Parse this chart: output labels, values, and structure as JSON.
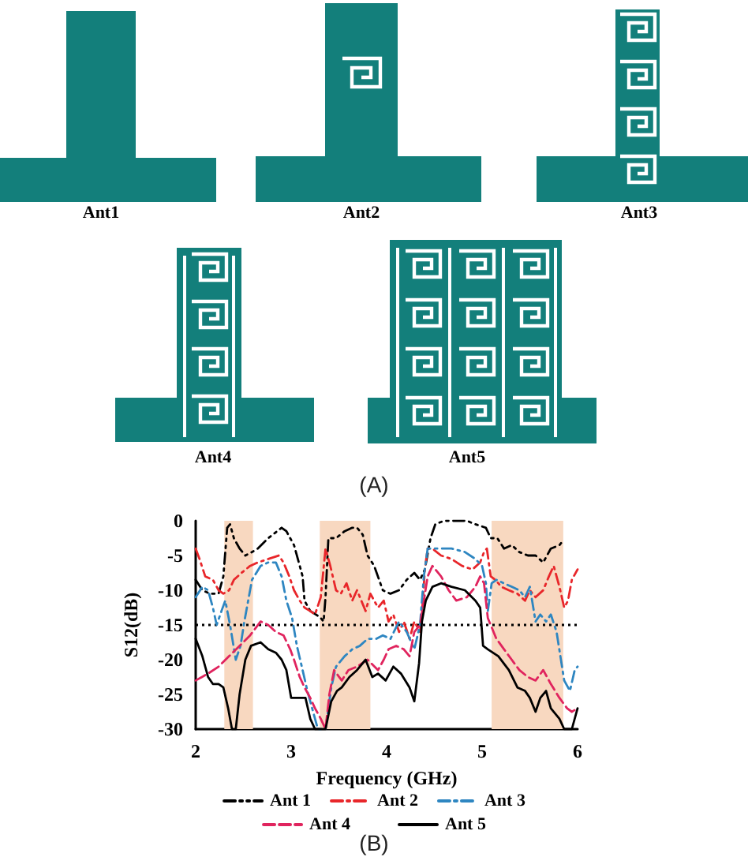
{
  "chart_data": [
    {
      "type": "other",
      "annotations": [
        "Ant1",
        "Ant2",
        "Ant3",
        "Ant4",
        "Ant5",
        "(A)"
      ]
    },
    {
      "type": "line",
      "xlabel": "Frequency (GHz)",
      "ylabel": "S12(dB)",
      "xlim": [
        2,
        6
      ],
      "ylim": [
        -30,
        0
      ],
      "xticks": [
        2,
        3,
        4,
        5,
        6
      ],
      "yticks": [
        -30,
        -25,
        -20,
        -15,
        -10,
        -5,
        0
      ],
      "grid": false,
      "legend": "bottom",
      "marker": "none",
      "annotations": [
        "(B)"
      ],
      "bands": [
        {
          "axis": "x",
          "from": 2.3,
          "to": 2.6,
          "color": "#f8d8c0"
        },
        {
          "axis": "x",
          "from": 3.3,
          "to": 3.83,
          "color": "#f8d8c0"
        },
        {
          "axis": "x",
          "from": 5.1,
          "to": 5.85,
          "color": "#f8d8c0"
        }
      ],
      "ref_lines": [
        {
          "axis": "y",
          "value": -15,
          "color": "#000000",
          "line_style": "dotted"
        }
      ],
      "series": [
        {
          "name": "Ant 1",
          "color": "#000000",
          "line_style": "dashdotdot",
          "x": [
            2.0,
            2.07,
            2.15,
            2.24,
            2.29,
            2.33,
            2.36,
            2.4,
            2.46,
            2.52,
            2.59,
            2.65,
            2.76,
            2.9,
            2.95,
            3.03,
            3.12,
            3.14,
            3.2,
            3.26,
            3.31,
            3.34,
            3.36,
            3.39,
            3.47,
            3.56,
            3.64,
            3.69,
            3.75,
            3.8,
            3.87,
            3.96,
            4.04,
            4.13,
            4.21,
            4.29,
            4.35,
            4.4,
            4.46,
            4.51,
            4.6,
            4.73,
            4.84,
            4.93,
            5.04,
            5.09,
            5.16,
            5.23,
            5.31,
            5.39,
            5.48,
            5.56,
            5.64,
            5.72,
            5.81,
            5.84
          ],
          "values": [
            -8.5,
            -10,
            -10.5,
            -10.5,
            -8,
            -1,
            -0.5,
            -2.5,
            -4,
            -5,
            -4.5,
            -4,
            -2.5,
            -1,
            -1.5,
            -3.5,
            -8,
            -11.5,
            -13,
            -13.5,
            -14,
            -14.5,
            -11,
            -2.5,
            -2.5,
            -1.5,
            -1,
            -1,
            -2,
            -5,
            -6.5,
            -10,
            -10.5,
            -10,
            -8.5,
            -7.5,
            -8.5,
            -7,
            -2.5,
            -0.5,
            0,
            0,
            0,
            -0.5,
            -1,
            -2.5,
            -2.5,
            -4,
            -3.5,
            -4.5,
            -5,
            -5,
            -6,
            -4,
            -3.5,
            -3
          ]
        },
        {
          "name": "Ant 2",
          "color": "#e8262a",
          "line_style": "dashdot",
          "x": [
            2.0,
            2.04,
            2.1,
            2.18,
            2.24,
            2.29,
            2.35,
            2.4,
            2.48,
            2.57,
            2.65,
            2.76,
            2.87,
            2.92,
            2.98,
            3.03,
            3.09,
            3.14,
            3.2,
            3.25,
            3.31,
            3.36,
            3.41,
            3.47,
            3.52,
            3.58,
            3.64,
            3.69,
            3.78,
            3.83,
            3.91,
            3.97,
            4.02,
            4.07,
            4.13,
            4.18,
            4.24,
            4.29,
            4.35,
            4.38,
            4.4,
            4.43,
            4.48,
            4.57,
            4.68,
            4.79,
            4.9,
            4.98,
            5.02,
            5.05,
            5.09,
            5.14,
            5.2,
            5.28,
            5.37,
            5.45,
            5.5,
            5.56,
            5.64,
            5.7,
            5.75,
            5.81,
            5.86,
            5.9,
            5.94,
            6.0
          ],
          "values": [
            -4,
            -5.5,
            -8,
            -8.5,
            -10,
            -10.5,
            -10,
            -8.5,
            -7.5,
            -6.5,
            -6,
            -5.5,
            -5,
            -6,
            -8,
            -10,
            -11.5,
            -12.5,
            -13,
            -13.5,
            -11,
            -4,
            -6.5,
            -10,
            -10.5,
            -9,
            -11.5,
            -10,
            -13,
            -10.5,
            -12.5,
            -11.5,
            -14.5,
            -13.5,
            -16,
            -14.5,
            -17,
            -14.5,
            -16,
            -11.5,
            -7,
            -4,
            -4,
            -5,
            -5.5,
            -6.5,
            -7,
            -6,
            -4.5,
            -4,
            -8,
            -8.5,
            -9.5,
            -10,
            -10.5,
            -11.5,
            -10,
            -11,
            -10,
            -8,
            -6.5,
            -9.5,
            -12.5,
            -11.5,
            -8.5,
            -7
          ]
        },
        {
          "name": "Ant 3",
          "color": "#2e86c1",
          "line_style": "dashdot",
          "x": [
            2.0,
            2.07,
            2.13,
            2.18,
            2.22,
            2.27,
            2.31,
            2.36,
            2.42,
            2.47,
            2.51,
            2.59,
            2.68,
            2.76,
            2.84,
            2.9,
            2.95,
            3.01,
            3.06,
            3.12,
            3.17,
            3.23,
            3.28,
            3.36,
            3.42,
            3.47,
            3.56,
            3.64,
            3.72,
            3.8,
            3.89,
            3.96,
            4.04,
            4.13,
            4.21,
            4.29,
            4.35,
            4.39,
            4.43,
            4.48,
            4.57,
            4.68,
            4.82,
            4.93,
            5.0,
            5.04,
            5.06,
            5.1,
            5.15,
            5.23,
            5.31,
            5.39,
            5.45,
            5.5,
            5.56,
            5.61,
            5.67,
            5.72,
            5.78,
            5.82,
            5.86,
            5.92,
            5.97,
            6.0
          ],
          "values": [
            -11,
            -9.5,
            -10,
            -12.5,
            -15,
            -13,
            -11.5,
            -15,
            -20,
            -18,
            -14.5,
            -8.5,
            -6.5,
            -6,
            -6,
            -8,
            -11.5,
            -14,
            -18,
            -21.5,
            -24.5,
            -27.5,
            -30,
            -30,
            -24,
            -21,
            -19.5,
            -18.5,
            -18,
            -17,
            -17,
            -16.5,
            -17,
            -14.5,
            -16,
            -18.5,
            -15,
            -8,
            -4,
            -4,
            -4,
            -4,
            -4.5,
            -5.5,
            -6.5,
            -9,
            -13,
            -9,
            -8.5,
            -9,
            -9.5,
            -10,
            -11,
            -9.5,
            -14.5,
            -13.5,
            -14.5,
            -13.5,
            -16,
            -19.5,
            -23,
            -24.5,
            -21.5,
            -21
          ]
        },
        {
          "name": "Ant 4",
          "color": "#e0245e",
          "line_style": "dashed",
          "x": [
            2.0,
            2.13,
            2.24,
            2.35,
            2.46,
            2.57,
            2.68,
            2.76,
            2.84,
            2.92,
            2.99,
            3.03,
            3.09,
            3.14,
            3.2,
            3.25,
            3.31,
            3.36,
            3.4,
            3.45,
            3.53,
            3.6,
            3.69,
            3.8,
            3.91,
            3.97,
            4.02,
            4.1,
            4.18,
            4.24,
            4.29,
            4.35,
            4.39,
            4.43,
            4.48,
            4.57,
            4.65,
            4.73,
            4.84,
            4.93,
            4.98,
            5.02,
            5.06,
            5.15,
            5.23,
            5.31,
            5.39,
            5.48,
            5.56,
            5.64,
            5.72,
            5.81,
            5.89,
            5.94,
            6.0
          ],
          "values": [
            -23,
            -22,
            -21,
            -19.5,
            -18,
            -16.5,
            -14.5,
            -15,
            -16,
            -16.5,
            -18.5,
            -20,
            -22.5,
            -24,
            -25.5,
            -27,
            -28.5,
            -30,
            -25,
            -21.5,
            -23,
            -21.5,
            -21,
            -20,
            -21.5,
            -20,
            -18.5,
            -18,
            -18.5,
            -19.5,
            -16,
            -15,
            -11.5,
            -8,
            -6.5,
            -8,
            -10,
            -11.5,
            -11,
            -9.5,
            -8,
            -9,
            -14,
            -17,
            -18.5,
            -20,
            -21.5,
            -22.5,
            -23,
            -21.5,
            -23.5,
            -25.5,
            -27,
            -27.5,
            -27
          ]
        },
        {
          "name": "Ant 5",
          "color": "#000000",
          "line_style": "solid",
          "x": [
            2.0,
            2.07,
            2.13,
            2.18,
            2.24,
            2.29,
            2.34,
            2.38,
            2.42,
            2.46,
            2.52,
            2.58,
            2.68,
            2.76,
            2.84,
            2.9,
            2.95,
            3.0,
            3.08,
            3.15,
            3.2,
            3.25,
            3.36,
            3.42,
            3.48,
            3.53,
            3.61,
            3.69,
            3.78,
            3.85,
            3.91,
            3.99,
            4.07,
            4.15,
            4.24,
            4.29,
            4.34,
            4.37,
            4.41,
            4.48,
            4.57,
            4.68,
            4.82,
            4.93,
            4.98,
            5.01,
            5.06,
            5.17,
            5.28,
            5.37,
            5.45,
            5.5,
            5.56,
            5.61,
            5.67,
            5.72,
            5.81,
            5.86,
            5.94,
            6.0
          ],
          "values": [
            -17,
            -19.5,
            -22.5,
            -23.5,
            -23.5,
            -24,
            -27,
            -30,
            -30,
            -25,
            -20,
            -18,
            -17.5,
            -18.5,
            -19,
            -20,
            -21.5,
            -25.5,
            -25.5,
            -25.5,
            -28.5,
            -30,
            -30,
            -26,
            -24.5,
            -24,
            -22.5,
            -21.5,
            -20,
            -22.5,
            -22,
            -23,
            -21,
            -22,
            -24,
            -26,
            -20.5,
            -14.5,
            -11.5,
            -9.5,
            -9,
            -9.5,
            -10,
            -11.5,
            -12.5,
            -18,
            -18.5,
            -19.5,
            -21.5,
            -24,
            -24.5,
            -25.5,
            -27.5,
            -25.5,
            -24.5,
            -27,
            -28.5,
            -30,
            -30,
            -27
          ]
        }
      ]
    }
  ]
}
